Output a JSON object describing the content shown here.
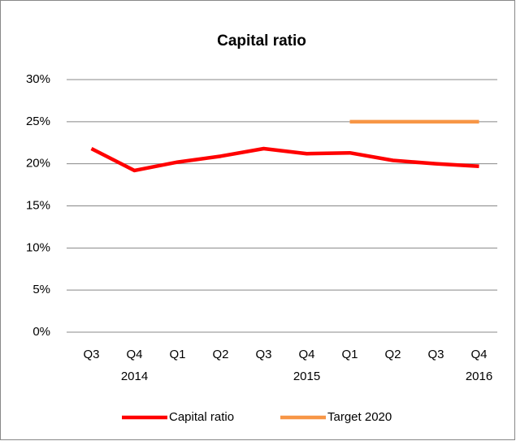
{
  "chart_data": {
    "type": "line",
    "title": "Capital ratio",
    "categories": [
      "Q3",
      "Q4",
      "Q1",
      "Q2",
      "Q3",
      "Q4",
      "Q1",
      "Q2",
      "Q3",
      "Q4"
    ],
    "category_groups": [
      null,
      "2014",
      null,
      null,
      null,
      "2015",
      null,
      null,
      null,
      "2016"
    ],
    "series": [
      {
        "name": "Capital ratio",
        "color": "#ff0000",
        "values": [
          21.8,
          19.2,
          20.2,
          20.9,
          21.8,
          21.2,
          21.3,
          20.4,
          20.0,
          19.7
        ]
      },
      {
        "name": "Target 2020",
        "color": "#f79646",
        "values": [
          null,
          null,
          null,
          null,
          null,
          null,
          25,
          25,
          25,
          25
        ]
      }
    ],
    "ylim": [
      0,
      30
    ],
    "yticks": [
      {
        "value": 0,
        "label": "0%"
      },
      {
        "value": 5,
        "label": "5%"
      },
      {
        "value": 10,
        "label": "10%"
      },
      {
        "value": 15,
        "label": "15%"
      },
      {
        "value": 20,
        "label": "20%"
      },
      {
        "value": 25,
        "label": "25%"
      },
      {
        "value": 30,
        "label": "30%"
      }
    ],
    "grid": true,
    "legend": "bottom"
  }
}
